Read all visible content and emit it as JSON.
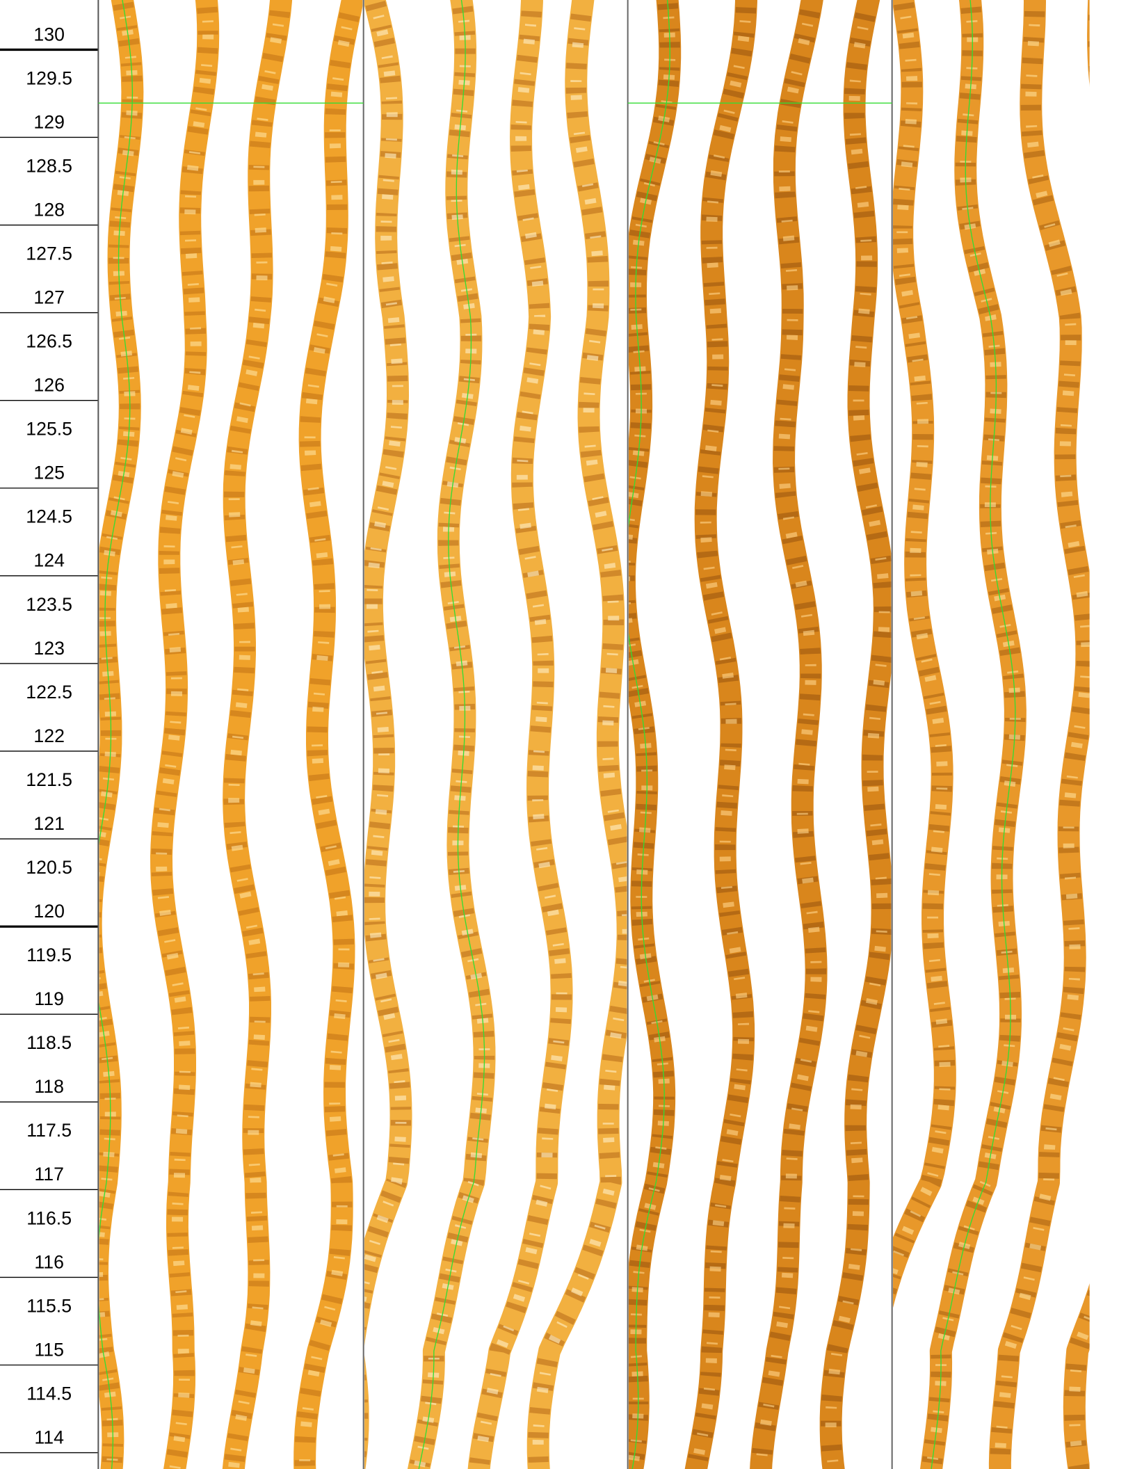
{
  "depth_track": {
    "labels": [
      130,
      129.5,
      129,
      128.5,
      128,
      127.5,
      127,
      126.5,
      126,
      125.5,
      125,
      124.5,
      124,
      123.5,
      123,
      122.5,
      122,
      121.5,
      121,
      120.5,
      120,
      119.5,
      119,
      118.5,
      118,
      117.5,
      117,
      116.5,
      116,
      115.5,
      115,
      114.5,
      114
    ]
  }
}
